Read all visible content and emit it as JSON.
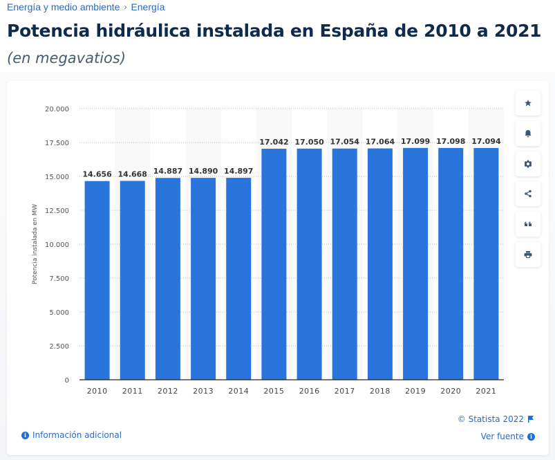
{
  "breadcrumb": {
    "items": [
      "Energía y medio ambiente",
      "Energía"
    ],
    "separator": "›"
  },
  "header": {
    "title": "Potencia hidráulica instalada en España de 2010 a 2021",
    "subtitle": "(en megavatios)"
  },
  "toolbar": {
    "buttons": [
      {
        "name": "favorite",
        "icon": "star-icon"
      },
      {
        "name": "notification",
        "icon": "bell-icon"
      },
      {
        "name": "settings",
        "icon": "gear-icon"
      },
      {
        "name": "share",
        "icon": "share-icon"
      },
      {
        "name": "cite",
        "icon": "quote-icon"
      },
      {
        "name": "print",
        "icon": "printer-icon"
      }
    ]
  },
  "footer": {
    "additional_info": "Información adicional",
    "copyright": "© Statista 2022",
    "source": "Ver fuente"
  },
  "colors": {
    "bar": "#2a75dc",
    "link": "#2a6ac4",
    "title": "#0f2a4a"
  },
  "chart_data": {
    "type": "bar",
    "title": "Potencia hidráulica instalada en España de 2010 a 2021",
    "subtitle": "(en megavatios)",
    "xlabel": "",
    "ylabel": "Potencia instalada en MW",
    "categories": [
      "2010",
      "2011",
      "2012",
      "2013",
      "2014",
      "2015",
      "2016",
      "2017",
      "2018",
      "2019",
      "2020",
      "2021"
    ],
    "values": [
      14656,
      14668,
      14887,
      14890,
      14897,
      17042,
      17050,
      17054,
      17064,
      17099,
      17098,
      17094
    ],
    "data_labels": [
      "14.656",
      "14.668",
      "14.887",
      "14.890",
      "14.897",
      "17.042",
      "17.050",
      "17.054",
      "17.064",
      "17.099",
      "17.098",
      "17.094"
    ],
    "ylim": [
      0,
      20000
    ],
    "yticks": [
      0,
      2500,
      5000,
      7500,
      10000,
      12500,
      15000,
      17500,
      20000
    ],
    "ytick_labels": [
      "0",
      "2.500",
      "5.000",
      "7.500",
      "10.000",
      "12.500",
      "15.000",
      "17.500",
      "20.000"
    ],
    "grid": true,
    "legend": "none"
  }
}
